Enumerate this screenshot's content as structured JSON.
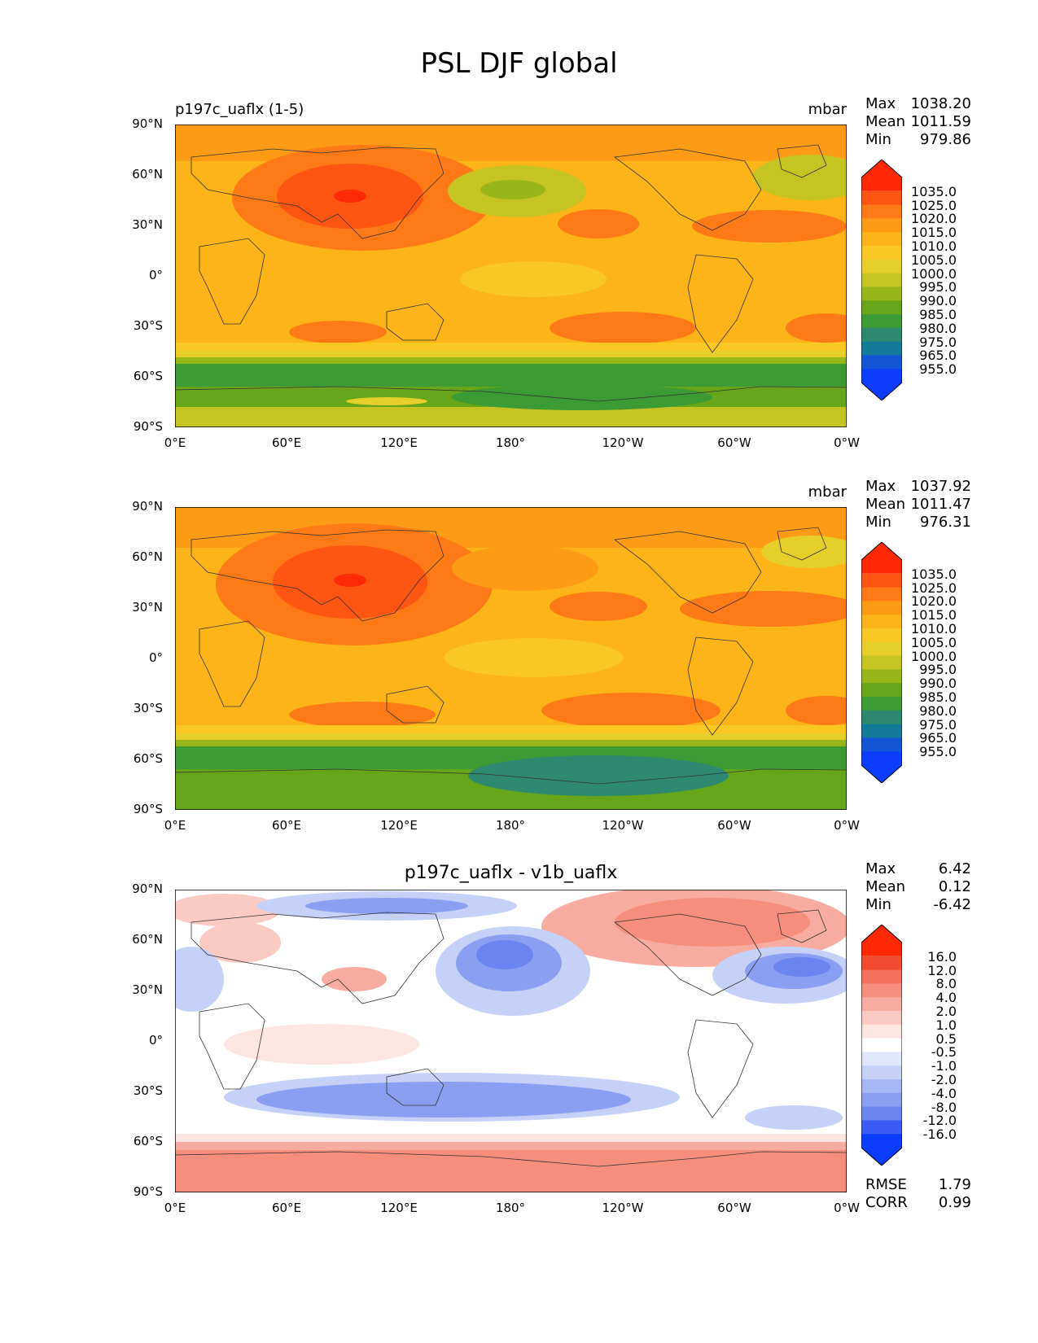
{
  "figure_title": "PSL DJF global",
  "panels": [
    {
      "left_title": "p197c_uaflx (1-5)",
      "center_title": "",
      "units": "mbar",
      "stats": [
        {
          "label": "Max",
          "value": "1038.20"
        },
        {
          "label": "Mean",
          "value": "1011.59"
        },
        {
          "label": "Min",
          "value": "979.86"
        }
      ],
      "colorbar_labels": [
        "1035.0",
        "1025.0",
        "1020.0",
        "1015.0",
        "1010.0",
        "1005.0",
        "1000.0",
        "995.0",
        "990.0",
        "985.0",
        "980.0",
        "975.0",
        "965.0",
        "955.0"
      ],
      "colors": [
        "#ff2a05",
        "#ff5512",
        "#ff7a16",
        "#fd9b16",
        "#fcb418",
        "#f9c822",
        "#e6cf2b",
        "#c6c422",
        "#98b618",
        "#67a51a",
        "#3d9b35",
        "#2d8a70",
        "#147a9a",
        "#1256d6",
        "#0a3dff"
      ]
    },
    {
      "left_title": "",
      "center_title": "",
      "units": "mbar",
      "stats": [
        {
          "label": "Max",
          "value": "1037.92"
        },
        {
          "label": "Mean",
          "value": "1011.47"
        },
        {
          "label": "Min",
          "value": "976.31"
        }
      ],
      "colorbar_labels": [
        "1035.0",
        "1025.0",
        "1020.0",
        "1015.0",
        "1010.0",
        "1005.0",
        "1000.0",
        "995.0",
        "990.0",
        "985.0",
        "980.0",
        "975.0",
        "965.0",
        "955.0"
      ],
      "colors": [
        "#ff2a05",
        "#ff5512",
        "#ff7a16",
        "#fd9b16",
        "#fcb418",
        "#f9c822",
        "#e6cf2b",
        "#c6c422",
        "#98b618",
        "#67a51a",
        "#3d9b35",
        "#2d8a70",
        "#147a9a",
        "#1256d6",
        "#0a3dff"
      ]
    },
    {
      "left_title": "",
      "center_title": "p197c_uaflx - v1b_uaflx",
      "units": "",
      "stats": [
        {
          "label": "Max",
          "value": "6.42"
        },
        {
          "label": "Mean",
          "value": "0.12"
        },
        {
          "label": "Min",
          "value": "-6.42"
        }
      ],
      "colorbar_labels": [
        "16.0",
        "12.0",
        "8.0",
        "4.0",
        "2.0",
        "1.0",
        "0.5",
        "-0.5",
        "-1.0",
        "-2.0",
        "-4.0",
        "-8.0",
        "-12.0",
        "-16.0"
      ],
      "colors": [
        "#ff2a05",
        "#f24b30",
        "#f5705c",
        "#f68e7e",
        "#f8aba0",
        "#fbcbc3",
        "#fde6e2",
        "#ffffff",
        "#e0e6fb",
        "#c6d1f8",
        "#a6b7f5",
        "#8a9ff2",
        "#6b84f0",
        "#3a5cf4",
        "#0a3dff"
      ]
    }
  ],
  "footer_stats": [
    {
      "label": "RMSE",
      "value": "1.79"
    },
    {
      "label": "CORR",
      "value": "0.99"
    }
  ],
  "y_ticks": [
    "90°N",
    "60°N",
    "30°N",
    "0°",
    "30°S",
    "60°S",
    "90°S"
  ],
  "x_ticks": [
    "0°E",
    "60°E",
    "120°E",
    "180°",
    "120°W",
    "60°W",
    "0°W"
  ]
}
